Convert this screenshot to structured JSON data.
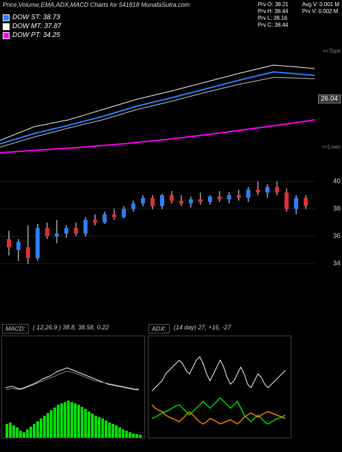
{
  "title": "Price,Volume,EMA,ADX,MACD Charts for 541818 MunafaSutra.com",
  "legend": [
    {
      "label": "DOW ST:",
      "value": "38.73",
      "color": "#2a7fff"
    },
    {
      "label": "DOW MT:",
      "value": "37.87",
      "color": "#ffffff"
    },
    {
      "label": "DOW PT:",
      "value": "34.25",
      "color": "#ff00ff"
    }
  ],
  "stats_left": [
    {
      "k": "Prv O:",
      "v": "38.21"
    },
    {
      "k": "Prv H:",
      "v": "38.44"
    },
    {
      "k": "Prv L:",
      "v": "38.16"
    },
    {
      "k": "Prv C:",
      "v": "38.44"
    }
  ],
  "stats_right": [
    {
      "k": "Avg V:",
      "v": "0.001 M"
    },
    {
      "k": "Prv V:",
      "v": "0.002 M"
    }
  ],
  "upper_chart": {
    "top_side_label": "<<Tops",
    "bot_side_label": "<<Lows",
    "price_tag": "26.04",
    "lines": [
      {
        "color": "#ffffff",
        "width": 1,
        "points": [
          [
            0,
            140
          ],
          [
            50,
            120
          ],
          [
            100,
            110
          ],
          [
            150,
            95
          ],
          [
            200,
            80
          ],
          [
            250,
            68
          ],
          [
            300,
            55
          ],
          [
            350,
            42
          ],
          [
            400,
            30
          ],
          [
            460,
            35
          ]
        ]
      },
      {
        "color": "#2a7fff",
        "width": 2,
        "points": [
          [
            0,
            145
          ],
          [
            50,
            130
          ],
          [
            100,
            118
          ],
          [
            150,
            105
          ],
          [
            200,
            90
          ],
          [
            250,
            78
          ],
          [
            300,
            65
          ],
          [
            350,
            52
          ],
          [
            400,
            40
          ],
          [
            460,
            45
          ]
        ]
      },
      {
        "color": "#cccccc",
        "width": 1,
        "points": [
          [
            0,
            150
          ],
          [
            50,
            135
          ],
          [
            100,
            122
          ],
          [
            150,
            110
          ],
          [
            200,
            95
          ],
          [
            250,
            83
          ],
          [
            300,
            70
          ],
          [
            350,
            58
          ],
          [
            400,
            48
          ],
          [
            460,
            50
          ]
        ]
      },
      {
        "color": "#ff00ff",
        "width": 2,
        "points": [
          [
            0,
            158
          ],
          [
            60,
            154
          ],
          [
            120,
            150
          ],
          [
            180,
            145
          ],
          [
            240,
            139
          ],
          [
            300,
            132
          ],
          [
            360,
            124
          ],
          [
            420,
            116
          ],
          [
            460,
            110
          ]
        ]
      }
    ]
  },
  "candle_chart": {
    "ylim": [
      33,
      41
    ],
    "grid": [
      34,
      36,
      38,
      40
    ],
    "grid_color": "#222222",
    "candles": [
      {
        "x": 10,
        "o": 35.8,
        "h": 36.4,
        "l": 34.6,
        "c": 35.2,
        "up": false
      },
      {
        "x": 24,
        "o": 35.0,
        "h": 35.8,
        "l": 34.2,
        "c": 35.6,
        "up": true
      },
      {
        "x": 38,
        "o": 35.2,
        "h": 36.8,
        "l": 34.0,
        "c": 34.4,
        "up": false
      },
      {
        "x": 52,
        "o": 34.4,
        "h": 36.9,
        "l": 34.2,
        "c": 36.6,
        "up": true
      },
      {
        "x": 66,
        "o": 36.6,
        "h": 37.0,
        "l": 35.8,
        "c": 36.0,
        "up": false
      },
      {
        "x": 80,
        "o": 36.0,
        "h": 37.2,
        "l": 35.5,
        "c": 36.2,
        "up": true
      },
      {
        "x": 94,
        "o": 36.2,
        "h": 36.8,
        "l": 35.9,
        "c": 36.6,
        "up": true
      },
      {
        "x": 108,
        "o": 36.6,
        "h": 37.0,
        "l": 36.0,
        "c": 36.2,
        "up": false
      },
      {
        "x": 122,
        "o": 36.2,
        "h": 37.4,
        "l": 36.0,
        "c": 37.2,
        "up": true
      },
      {
        "x": 136,
        "o": 37.2,
        "h": 37.6,
        "l": 36.8,
        "c": 37.0,
        "up": false
      },
      {
        "x": 150,
        "o": 37.0,
        "h": 37.8,
        "l": 36.9,
        "c": 37.6,
        "up": true
      },
      {
        "x": 164,
        "o": 37.6,
        "h": 38.0,
        "l": 37.2,
        "c": 37.4,
        "up": false
      },
      {
        "x": 178,
        "o": 37.4,
        "h": 38.2,
        "l": 37.3,
        "c": 38.0,
        "up": true
      },
      {
        "x": 192,
        "o": 38.0,
        "h": 38.6,
        "l": 37.8,
        "c": 38.4,
        "up": true
      },
      {
        "x": 206,
        "o": 38.4,
        "h": 39.0,
        "l": 38.2,
        "c": 38.8,
        "up": true
      },
      {
        "x": 220,
        "o": 38.8,
        "h": 39.0,
        "l": 38.0,
        "c": 38.2,
        "up": false
      },
      {
        "x": 234,
        "o": 38.2,
        "h": 39.1,
        "l": 38.0,
        "c": 39.0,
        "up": true
      },
      {
        "x": 248,
        "o": 39.0,
        "h": 39.3,
        "l": 38.4,
        "c": 38.6,
        "up": false
      },
      {
        "x": 262,
        "o": 38.6,
        "h": 39.0,
        "l": 38.2,
        "c": 38.4,
        "up": false
      },
      {
        "x": 276,
        "o": 38.4,
        "h": 38.9,
        "l": 38.1,
        "c": 38.7,
        "up": true
      },
      {
        "x": 290,
        "o": 38.7,
        "h": 39.2,
        "l": 38.3,
        "c": 38.5,
        "up": false
      },
      {
        "x": 304,
        "o": 38.5,
        "h": 39.0,
        "l": 38.3,
        "c": 38.9,
        "up": true
      },
      {
        "x": 318,
        "o": 38.9,
        "h": 39.3,
        "l": 38.5,
        "c": 38.7,
        "up": false
      },
      {
        "x": 332,
        "o": 38.7,
        "h": 39.2,
        "l": 38.4,
        "c": 39.0,
        "up": true
      },
      {
        "x": 346,
        "o": 39.0,
        "h": 39.4,
        "l": 38.6,
        "c": 38.8,
        "up": false
      },
      {
        "x": 360,
        "o": 38.8,
        "h": 39.6,
        "l": 38.5,
        "c": 39.4,
        "up": true
      },
      {
        "x": 374,
        "o": 39.4,
        "h": 40.0,
        "l": 39.0,
        "c": 39.2,
        "up": false
      },
      {
        "x": 388,
        "o": 39.2,
        "h": 39.8,
        "l": 38.8,
        "c": 39.6,
        "up": true
      },
      {
        "x": 402,
        "o": 39.6,
        "h": 40.0,
        "l": 39.0,
        "c": 39.2,
        "up": false
      },
      {
        "x": 416,
        "o": 39.2,
        "h": 39.5,
        "l": 37.8,
        "c": 38.0,
        "up": false
      },
      {
        "x": 430,
        "o": 38.0,
        "h": 39.0,
        "l": 37.6,
        "c": 38.8,
        "up": true
      },
      {
        "x": 444,
        "o": 38.8,
        "h": 39.0,
        "l": 38.0,
        "c": 38.2,
        "up": false
      }
    ],
    "up_color": "#2a7fff",
    "down_color": "#e03030",
    "wick_color": "#ffffff"
  },
  "macd": {
    "label": "MACD:",
    "params": "( 12,26,9 ) 38.8, 38.58, 0.22",
    "hist_color": "#00e000",
    "line1_color": "#ffffff",
    "line2_color": "#888888",
    "hist": [
      20,
      22,
      18,
      15,
      10,
      8,
      12,
      16,
      20,
      24,
      28,
      32,
      36,
      40,
      44,
      48,
      50,
      52,
      54,
      52,
      50,
      48,
      45,
      42,
      38,
      35,
      32,
      30,
      28,
      25,
      22,
      20,
      18,
      15,
      12,
      10,
      8,
      6,
      5,
      4
    ],
    "line1": [
      75,
      74,
      73,
      75,
      77,
      76,
      74,
      72,
      70,
      68,
      65,
      62,
      60,
      58,
      55,
      52,
      50,
      48,
      46,
      48,
      50,
      52,
      54,
      56,
      58,
      60,
      62,
      64,
      66,
      68,
      70,
      71,
      72,
      73,
      74,
      75,
      76,
      77,
      78,
      78
    ],
    "line2": [
      78,
      77,
      76,
      77,
      78,
      77,
      75,
      73,
      71,
      69,
      67,
      65,
      63,
      61,
      59,
      57,
      55,
      53,
      51,
      52,
      53,
      55,
      57,
      59,
      61,
      63,
      65,
      66,
      67,
      68,
      69,
      70,
      71,
      72,
      73,
      74,
      75,
      76,
      77,
      77
    ]
  },
  "adx": {
    "label": "ADX:",
    "params": "(14 day) 27, +16, -27",
    "adx_color": "#ffffff",
    "plus_color": "#00e000",
    "minus_color": "#ff8000",
    "adx_line": [
      80,
      75,
      70,
      65,
      55,
      50,
      45,
      40,
      35,
      40,
      50,
      55,
      45,
      35,
      30,
      40,
      55,
      65,
      55,
      45,
      35,
      45,
      60,
      70,
      65,
      55,
      45,
      55,
      70,
      75,
      65,
      55,
      60,
      70,
      75,
      70,
      65,
      60,
      55,
      50
    ],
    "plus_line": [
      120,
      118,
      115,
      112,
      110,
      108,
      105,
      102,
      100,
      105,
      110,
      115,
      110,
      105,
      100,
      95,
      100,
      105,
      100,
      95,
      90,
      95,
      100,
      105,
      100,
      95,
      105,
      115,
      120,
      125,
      120,
      115,
      120,
      125,
      128,
      125,
      122,
      120,
      118,
      115
    ],
    "minus_line": [
      100,
      105,
      108,
      110,
      115,
      118,
      120,
      122,
      125,
      120,
      115,
      110,
      115,
      120,
      125,
      128,
      125,
      120,
      122,
      125,
      128,
      126,
      124,
      122,
      125,
      128,
      124,
      118,
      115,
      112,
      115,
      118,
      115,
      112,
      110,
      112,
      114,
      116,
      118,
      120
    ]
  },
  "timeline_ticks": [
    "",
    "",
    "",
    "",
    "",
    "",
    "",
    "",
    "",
    "",
    "",
    ""
  ]
}
